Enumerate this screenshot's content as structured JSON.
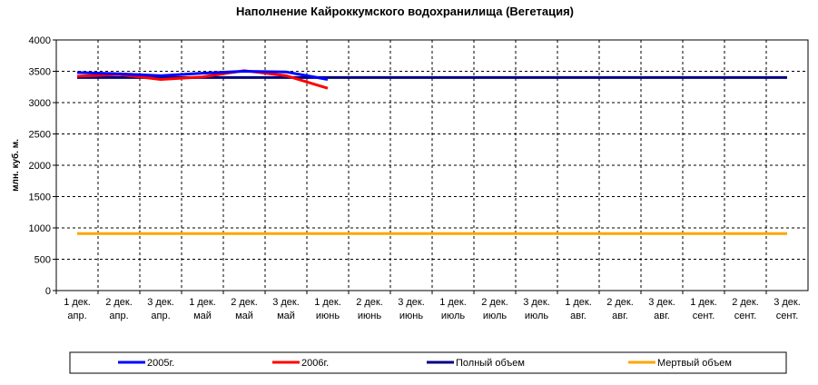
{
  "chart_data": {
    "type": "line",
    "title": "Наполнение Кайроккумского водохранилища (Вегетация)",
    "y_label": "млн. куб. м.",
    "categories": [
      [
        "1 дек.",
        "апр."
      ],
      [
        "2 дек.",
        "апр."
      ],
      [
        "3 дек.",
        "апр."
      ],
      [
        "1 дек.",
        "май"
      ],
      [
        "2 дек.",
        "май"
      ],
      [
        "3 дек.",
        "май"
      ],
      [
        "1 дек.",
        "июнь"
      ],
      [
        "2 дек.",
        "июнь"
      ],
      [
        "3 дек.",
        "июнь"
      ],
      [
        "1 дек.",
        "июль"
      ],
      [
        "2 дек.",
        "июль"
      ],
      [
        "3 дек.",
        "июль"
      ],
      [
        "1 дек.",
        "авг."
      ],
      [
        "2 дек.",
        "авг."
      ],
      [
        "3 дек.",
        "авг."
      ],
      [
        "1 дек.",
        "сент."
      ],
      [
        "2 дек.",
        "сент."
      ],
      [
        "3 дек.",
        "сент."
      ]
    ],
    "series": [
      {
        "name": "2005г.",
        "color": "#0000ff",
        "values": [
          3480,
          3460,
          3430,
          3470,
          3500,
          3490,
          3370,
          null,
          null,
          null,
          null,
          null,
          null,
          null,
          null,
          null,
          null,
          null
        ]
      },
      {
        "name": "2006г.",
        "color": "#ff0000",
        "values": [
          3420,
          3450,
          3370,
          3410,
          3510,
          3430,
          3230,
          null,
          null,
          null,
          null,
          null,
          null,
          null,
          null,
          null,
          null,
          null
        ]
      },
      {
        "name": "Полный объем",
        "color": "#000080",
        "values": [
          3400,
          3400,
          3400,
          3400,
          3400,
          3400,
          3400,
          3400,
          3400,
          3400,
          3400,
          3400,
          3400,
          3400,
          3400,
          3400,
          3400,
          3400
        ]
      },
      {
        "name": "Мертвый объем",
        "color": "#ffa500",
        "values": [
          910,
          910,
          910,
          910,
          910,
          910,
          910,
          910,
          910,
          910,
          910,
          910,
          910,
          910,
          910,
          910,
          910,
          910
        ]
      }
    ],
    "ylim": [
      0,
      4000
    ],
    "yticks": [
      0,
      500,
      1000,
      1500,
      2000,
      2500,
      3000,
      3500,
      4000
    ],
    "grid": true,
    "legend": "bottom"
  }
}
